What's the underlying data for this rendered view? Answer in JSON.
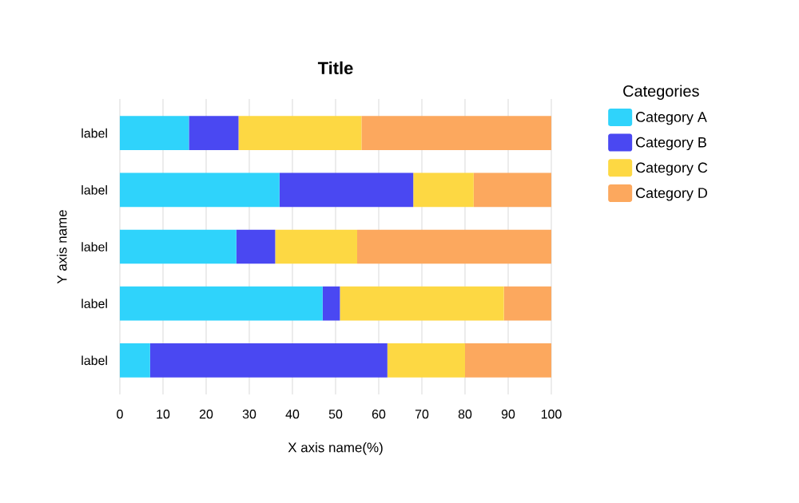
{
  "chart_data": {
    "type": "bar",
    "orientation": "horizontal",
    "stacked": true,
    "title": "Title",
    "xlabel": "X axis name(%)",
    "ylabel": "Y axis name",
    "legend_title": "Categories",
    "legend": "right",
    "categories": [
      "label",
      "label",
      "label",
      "label",
      "label"
    ],
    "series": [
      {
        "name": "Category A",
        "color": "#2fd3fb",
        "values": [
          16,
          37,
          27,
          47,
          7
        ]
      },
      {
        "name": "Category B",
        "color": "#4a48f2",
        "values": [
          11.5,
          31,
          9,
          4,
          55
        ]
      },
      {
        "name": "Category C",
        "color": "#fdd843",
        "values": [
          28.5,
          14,
          19,
          38,
          18
        ]
      },
      {
        "name": "Category D",
        "color": "#fca85e",
        "values": [
          44,
          18,
          45,
          11,
          20
        ]
      }
    ],
    "xlim": [
      0,
      100
    ],
    "xticks": [
      0,
      10,
      20,
      30,
      40,
      50,
      60,
      70,
      80,
      90,
      100
    ],
    "grid": "x"
  }
}
